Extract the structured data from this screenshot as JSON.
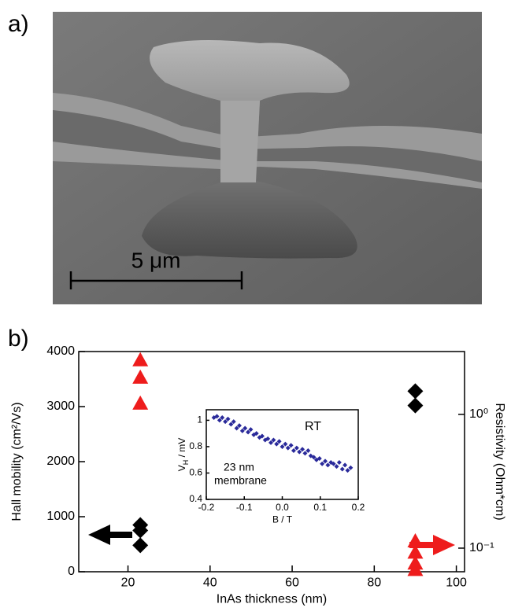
{
  "panel_labels": [
    "a)",
    "b)"
  ],
  "image": {
    "scale_bar_label": "5 μm"
  },
  "chart_data": [
    {
      "type": "scatter",
      "xlabel": "InAs thickness (nm)",
      "ylabel": "Hall mobility (cm²/Vs)",
      "y2label": "Resistivity (Ohm*cm)",
      "xlim": [
        8,
        102
      ],
      "xticks": [
        20,
        40,
        60,
        80,
        100
      ],
      "ylim": [
        0,
        4000
      ],
      "yticks": [
        0,
        1000,
        2000,
        3000,
        4000
      ],
      "y2log": true,
      "y2lim": [
        0.0666,
        2.95
      ],
      "y2ticks": [
        {
          "value": 1,
          "label": "10⁰"
        },
        {
          "value": 0.1,
          "label": "10⁻¹"
        }
      ],
      "series": [
        {
          "color": "#000000",
          "marker": "diamond",
          "x": [
            23,
            23,
            23,
            90,
            90
          ],
          "values": [
            850,
            750,
            480,
            3280,
            3020
          ]
        },
        {
          "color": "#ee1c1c",
          "marker": "triangle",
          "axis": "y2",
          "x": [
            23,
            23,
            23,
            90,
            90,
            90,
            90
          ],
          "values": [
            2.55,
            1.89,
            1.21,
            0.113,
            0.093,
            0.077,
            0.069
          ]
        }
      ]
    },
    {
      "type": "scatter",
      "xlabel": "B / T",
      "ylabel": [
        "V",
        "H",
        " / mV"
      ],
      "annotations": [
        "RT",
        "23 nm",
        "membrane"
      ],
      "xlim": [
        -0.2,
        0.2
      ],
      "xticks": [
        -0.2,
        -0.1,
        {
          "value": 0,
          "label": "0.0"
        },
        0.1,
        0.2
      ],
      "ylim": [
        0.4,
        1.08
      ],
      "yticks": [
        0.4,
        0.6,
        0.8,
        1
      ],
      "series": [
        {
          "color": "#2a2a9a",
          "marker": "small-diamond",
          "x": [
            -0.18,
            -0.172,
            -0.165,
            -0.158,
            -0.15,
            -0.143,
            -0.135,
            -0.128,
            -0.12,
            -0.113,
            -0.105,
            -0.098,
            -0.09,
            -0.083,
            -0.075,
            -0.068,
            -0.06,
            -0.053,
            -0.045,
            -0.038,
            -0.03,
            -0.023,
            -0.015,
            -0.008,
            0,
            0.008,
            0.015,
            0.023,
            0.03,
            0.038,
            0.045,
            0.053,
            0.06,
            0.068,
            0.075,
            0.083,
            0.09,
            0.098,
            0.105,
            0.113,
            0.12,
            0.128,
            0.135,
            0.143,
            0.15,
            0.158,
            0.165,
            0.172,
            0.18
          ],
          "values": [
            1.02,
            1.03,
            1.0,
            1.02,
            0.99,
            1.01,
            0.97,
            0.99,
            0.94,
            0.96,
            0.92,
            0.94,
            0.91,
            0.93,
            0.89,
            0.9,
            0.87,
            0.88,
            0.85,
            0.86,
            0.83,
            0.85,
            0.82,
            0.84,
            0.8,
            0.82,
            0.79,
            0.81,
            0.77,
            0.79,
            0.76,
            0.78,
            0.75,
            0.77,
            0.73,
            0.72,
            0.7,
            0.71,
            0.67,
            0.69,
            0.66,
            0.68,
            0.67,
            0.65,
            0.68,
            0.63,
            0.66,
            0.62,
            0.64
          ]
        }
      ]
    }
  ]
}
